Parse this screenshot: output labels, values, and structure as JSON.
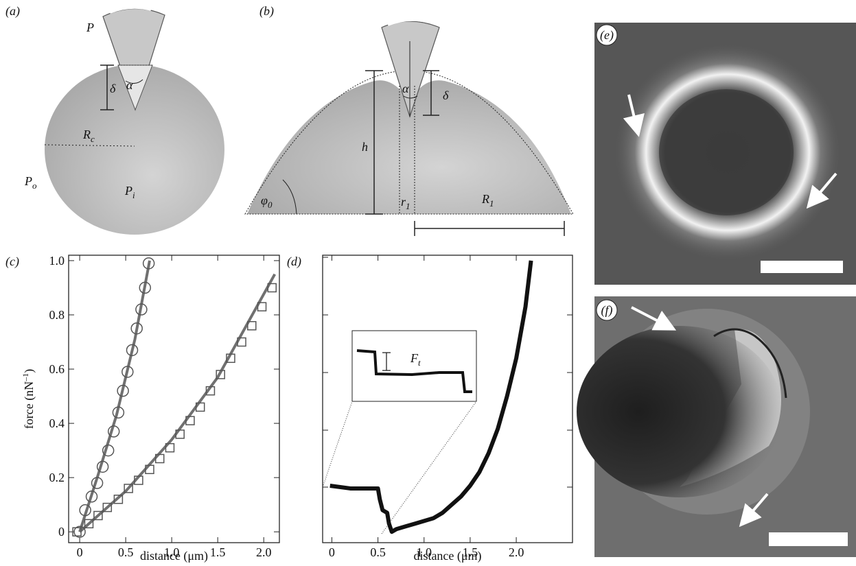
{
  "panels": {
    "a": {
      "label": "(a)",
      "P": "P",
      "delta": "δ",
      "alpha": "α",
      "Rc": [
        "R",
        "c"
      ],
      "Po": [
        "P",
        "o"
      ],
      "Pi": [
        "P",
        "i"
      ]
    },
    "b": {
      "label": "(b)",
      "h": "h",
      "alpha": "α",
      "delta": "δ",
      "phi0": [
        "φ",
        "0"
      ],
      "r1": [
        "r",
        "1"
      ],
      "R1": [
        "R",
        "1"
      ]
    },
    "e": {
      "label": "(e)"
    },
    "f": {
      "label": "(f)"
    }
  },
  "chart_data": [
    {
      "type": "scatter",
      "label": "(c)",
      "xlabel": "distance (μm)",
      "ylabel": [
        "force (nN",
        "–1",
        ")"
      ],
      "xlim": [
        -0.12,
        2.17
      ],
      "ylim": [
        -0.04,
        1.02
      ],
      "xticks": [
        0,
        0.5,
        {
          "value": 1,
          "label": "1.0"
        },
        1.5,
        {
          "value": 2,
          "label": "2.0"
        }
      ],
      "yticks": [
        0,
        0.2,
        0.4,
        0.6,
        0.8,
        {
          "value": 1,
          "label": "1.0"
        }
      ],
      "series": [
        {
          "style": "line",
          "color": "#707070",
          "x": [
            0,
            0.2,
            0.4,
            0.6,
            0.76
          ],
          "values": [
            0,
            0.21,
            0.43,
            0.71,
            1.0
          ]
        },
        {
          "style": "line",
          "color": "#707070",
          "x": [
            0,
            0.5,
            1,
            1.5,
            2.12
          ],
          "values": [
            0,
            0.15,
            0.34,
            0.57,
            0.95
          ]
        },
        {
          "style": "circle",
          "color": "#555555",
          "x": [
            0,
            0.06,
            0.13,
            0.19,
            0.25,
            0.31,
            0.37,
            0.42,
            0.47,
            0.52,
            0.57,
            0.62,
            0.67,
            0.71,
            0.75
          ],
          "values": [
            0,
            0.08,
            0.13,
            0.18,
            0.24,
            0.3,
            0.37,
            0.44,
            0.52,
            0.59,
            0.67,
            0.75,
            0.82,
            0.9,
            0.99
          ]
        },
        {
          "style": "square",
          "color": "#555555",
          "x": [
            -0.03,
            0.1,
            0.2,
            0.3,
            0.42,
            0.53,
            0.64,
            0.76,
            0.87,
            0.98,
            1.09,
            1.2,
            1.31,
            1.42,
            1.53,
            1.64,
            1.76,
            1.87,
            1.98,
            2.09
          ],
          "values": [
            0,
            0.03,
            0.06,
            0.09,
            0.12,
            0.16,
            0.19,
            0.23,
            0.27,
            0.31,
            0.36,
            0.41,
            0.46,
            0.52,
            0.58,
            0.64,
            0.7,
            0.76,
            0.83,
            0.9
          ]
        }
      ]
    },
    {
      "type": "line",
      "label": "(d)",
      "xlabel": "distance (μm)",
      "inset_label": [
        "F",
        "t"
      ],
      "xlim": [
        -0.1,
        2.61
      ],
      "ylim": [
        -0.04,
        1.02
      ],
      "xticks": [
        0,
        0.5,
        {
          "value": 1,
          "label": "1.0"
        },
        1.5,
        {
          "value": 2,
          "label": "2.0"
        }
      ],
      "series": [
        {
          "style": "line",
          "color": "#111111",
          "x": [
            -0.02,
            0.2,
            0.4,
            0.5,
            0.52,
            0.55,
            0.6,
            0.62,
            0.65,
            0.7,
            0.8,
            0.9,
            1.0,
            1.1,
            1.2,
            1.3,
            1.4,
            1.5,
            1.6,
            1.7,
            1.8,
            1.9,
            2.0,
            2.1,
            2.16
          ],
          "values": [
            0.17,
            0.16,
            0.16,
            0.16,
            0.12,
            0.08,
            0.07,
            0.03,
            0,
            0.01,
            0.02,
            0.03,
            0.04,
            0.05,
            0.07,
            0.1,
            0.13,
            0.17,
            0.22,
            0.29,
            0.38,
            0.5,
            0.64,
            0.83,
            1.0
          ]
        }
      ]
    }
  ]
}
